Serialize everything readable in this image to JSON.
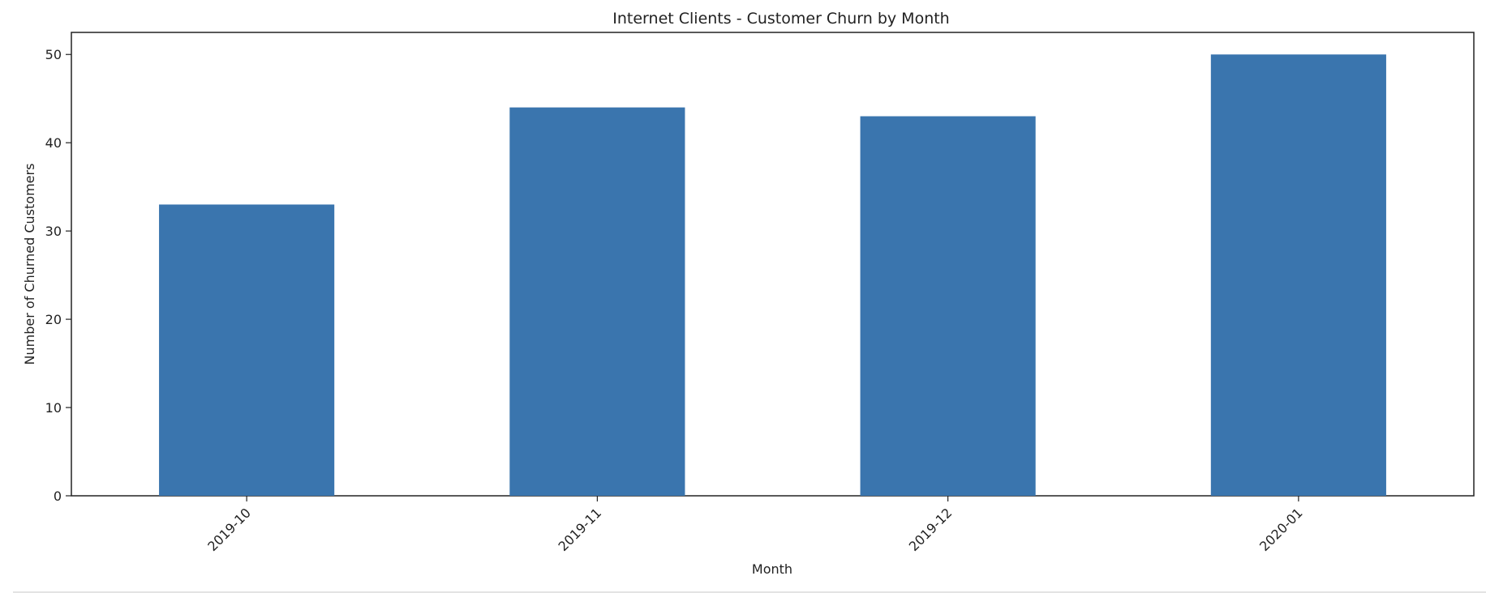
{
  "chart_data": {
    "type": "bar",
    "title": "Internet Clients - Customer Churn by Month",
    "xlabel": "Month",
    "ylabel": "Number of Churned Customers",
    "categories": [
      "2019-10",
      "2019-11",
      "2019-12",
      "2020-01"
    ],
    "values": [
      33,
      44,
      43,
      50
    ],
    "ylim": [
      0,
      52.5
    ],
    "yticks": [
      0,
      10,
      20,
      30,
      40,
      50
    ],
    "grid": false,
    "legend": "none",
    "bar_color": "#3a75ae",
    "x_tick_rotation_deg": 45
  }
}
